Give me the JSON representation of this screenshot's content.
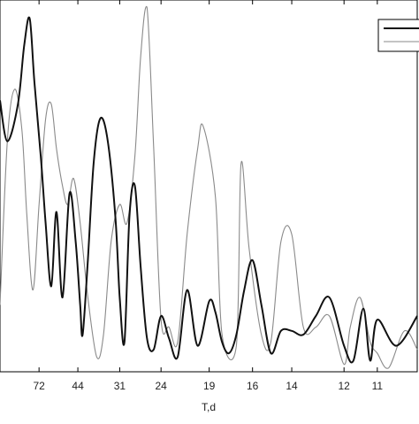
{
  "chart_data": {
    "type": "line",
    "xlabel": "T,d",
    "ylabel": "",
    "title": "",
    "x_tick_labels": [
      "72",
      "44",
      "31",
      "24",
      "19",
      "16",
      "14",
      "12",
      "11"
    ],
    "x_tick_positions": [
      72,
      44,
      31,
      24,
      19,
      16,
      14,
      12,
      11
    ],
    "x_scale": "reciprocal",
    "xlim": [
      200,
      10
    ],
    "ylim": [
      0,
      1
    ],
    "grid": false,
    "legend": {
      "position": "top-right",
      "entries": 2
    },
    "series": [
      {
        "color": "#111111",
        "linewidth": "thick",
        "points": [
          [
            200,
            0.73
          ],
          [
            150,
            0.62
          ],
          [
            110,
            0.72
          ],
          [
            95,
            0.88
          ],
          [
            85,
            0.95
          ],
          [
            78,
            0.78
          ],
          [
            70,
            0.58
          ],
          [
            65,
            0.4
          ],
          [
            60,
            0.23
          ],
          [
            56,
            0.43
          ],
          [
            52,
            0.2
          ],
          [
            48,
            0.48
          ],
          [
            45,
            0.35
          ],
          [
            43,
            0.18
          ],
          [
            42,
            0.1
          ],
          [
            40,
            0.3
          ],
          [
            38,
            0.56
          ],
          [
            36,
            0.68
          ],
          [
            34,
            0.63
          ],
          [
            32,
            0.42
          ],
          [
            31,
            0.2
          ],
          [
            30,
            0.08
          ],
          [
            29,
            0.42
          ],
          [
            28,
            0.5
          ],
          [
            27,
            0.28
          ],
          [
            26,
            0.09
          ],
          [
            25,
            0.06
          ],
          [
            24,
            0.15
          ],
          [
            23,
            0.09
          ],
          [
            22,
            0.04
          ],
          [
            21,
            0.22
          ],
          [
            20,
            0.07
          ],
          [
            19,
            0.19
          ],
          [
            18.5,
            0.16
          ],
          [
            18,
            0.08
          ],
          [
            17.5,
            0.05
          ],
          [
            17,
            0.1
          ],
          [
            16.5,
            0.22
          ],
          [
            16,
            0.3
          ],
          [
            15.5,
            0.18
          ],
          [
            15,
            0.05
          ],
          [
            14.5,
            0.11
          ],
          [
            14,
            0.11
          ],
          [
            13.5,
            0.1
          ],
          [
            13,
            0.15
          ],
          [
            12.5,
            0.2
          ],
          [
            12,
            0.07
          ],
          [
            11.7,
            0.03
          ],
          [
            11.4,
            0.17
          ],
          [
            11.2,
            0.03
          ],
          [
            11,
            0.14
          ],
          [
            10.5,
            0.07
          ],
          [
            10,
            0.15
          ]
        ]
      },
      {
        "color": "#8a8a8a",
        "linewidth": "thin",
        "points": [
          [
            200,
            0.18
          ],
          [
            150,
            0.62
          ],
          [
            120,
            0.76
          ],
          [
            100,
            0.65
          ],
          [
            90,
            0.42
          ],
          [
            80,
            0.22
          ],
          [
            72,
            0.45
          ],
          [
            65,
            0.68
          ],
          [
            60,
            0.72
          ],
          [
            56,
            0.6
          ],
          [
            52,
            0.5
          ],
          [
            49,
            0.45
          ],
          [
            46,
            0.52
          ],
          [
            43,
            0.4
          ],
          [
            40,
            0.2
          ],
          [
            37,
            0.04
          ],
          [
            35,
            0.1
          ],
          [
            33,
            0.35
          ],
          [
            31,
            0.45
          ],
          [
            29.5,
            0.4
          ],
          [
            28,
            0.58
          ],
          [
            27,
            0.85
          ],
          [
            26,
            0.98
          ],
          [
            25,
            0.6
          ],
          [
            24,
            0.14
          ],
          [
            23,
            0.12
          ],
          [
            22,
            0.08
          ],
          [
            21,
            0.37
          ],
          [
            20,
            0.6
          ],
          [
            19.5,
            0.66
          ],
          [
            18.5,
            0.47
          ],
          [
            18,
            0.1
          ],
          [
            17,
            0.07
          ],
          [
            16.7,
            0.56
          ],
          [
            16.2,
            0.33
          ],
          [
            15.5,
            0.1
          ],
          [
            15,
            0.08
          ],
          [
            14.5,
            0.35
          ],
          [
            14,
            0.37
          ],
          [
            13.5,
            0.12
          ],
          [
            13,
            0.12
          ],
          [
            12.5,
            0.15
          ],
          [
            12,
            0.02
          ],
          [
            11.8,
            0.12
          ],
          [
            11.5,
            0.2
          ],
          [
            11.2,
            0.08
          ],
          [
            11,
            0.05
          ],
          [
            10.7,
            0.01
          ],
          [
            10.3,
            0.11
          ],
          [
            10,
            0.06
          ]
        ]
      }
    ]
  }
}
